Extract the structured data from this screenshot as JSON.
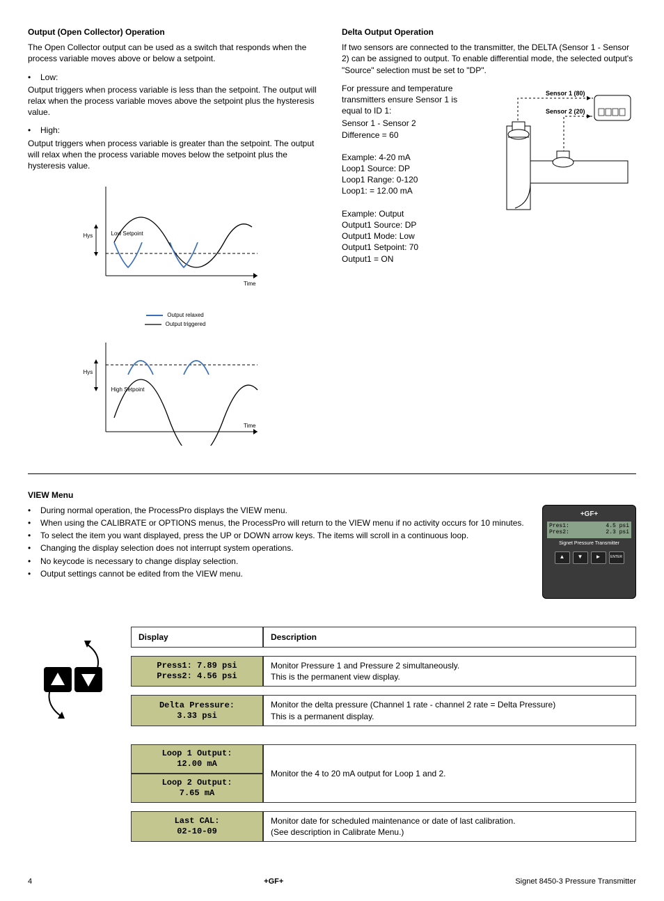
{
  "section_open_collector": {
    "heading": "Output (Open Collector) Operation",
    "intro": "The Open Collector output can be used as a switch that responds when the process variable moves above or below a setpoint.",
    "low": {
      "bullet": "Low:",
      "body": "Output triggers when process variable is less than the setpoint. The output will relax when the process variable moves above the setpoint plus the hysteresis value."
    },
    "high": {
      "bullet": "High:",
      "body": "Output triggers when process variable is greater than the setpoint. The output will relax when the process variable moves below the setpoint plus the hysteresis value."
    },
    "legend_relaxed": "Output relaxed",
    "legend_triggered": "Output triggered",
    "wave_low": {
      "hys_label": "Hys",
      "setpoint_label": "Low Setpoint",
      "time_label": "Time"
    },
    "wave_high": {
      "hys_label": "Hys",
      "setpoint_label": "High Setpoint",
      "time_label": "Time"
    }
  },
  "section_delta": {
    "heading": "Delta Output Operation",
    "p1": "If two sensors are connected to the transmitter, the DELTA (Sensor 1 - Sensor 2) can be assigned to output. To enable differential mode, the selected output's \"Source\" selection must be set to \"DP\".",
    "p2": "For pressure and temperature transmitters ensure Sensor 1 is equal to ID 1:",
    "lines": [
      "Sensor 1 - Sensor 2",
      "Difference = 60"
    ],
    "example1": [
      "Example: 4-20 mA",
      "Loop1 Source: DP",
      "Loop1 Range: 0-120",
      "Loop1: = 12.00 mA"
    ],
    "example2": [
      "Example: Output",
      "Output1 Source: DP",
      "Output1 Mode: Low",
      "Output1 Setpoint: 70",
      "Output1 = ON"
    ],
    "diagram": {
      "sensor1": "Sensor 1 (80)",
      "sensor2": "Sensor 2 (20)"
    }
  },
  "section_view": {
    "heading": "VIEW Menu",
    "bullets": [
      "During normal operation, the ProcessPro displays the VIEW menu.",
      "When using the CALIBRATE or OPTIONS menus, the ProcessPro will return to the VIEW menu if no activity occurs for 10 minutes.",
      "To select the item you want displayed, press the UP or DOWN arrow keys. The items will scroll in a continuous loop.",
      "Changing the display selection does not interrupt system operations.",
      "No keycode is necessary to change display selection.",
      "Output settings cannot be edited from the VIEW menu."
    ],
    "device": {
      "brand": "+GF+",
      "lcd_rows": [
        {
          "l": "Pres1:",
          "r": "4.5 psi"
        },
        {
          "l": "Pres2:",
          "r": "2.3 psi"
        }
      ],
      "caption": "Signet Pressure Transmitter",
      "buttons": [
        "▲",
        "▼",
        "►",
        "ENTER"
      ]
    },
    "table": {
      "header_display": "Display",
      "header_desc": "Description",
      "rows": [
        {
          "display": "Press1: 7.89 psi\nPress2: 4.56 psi",
          "desc": "Monitor Pressure 1 and Pressure 2 simultaneously.\nThis is the permanent view display."
        },
        {
          "display": "Delta Pressure:\n3.33 psi",
          "desc": "Monitor the delta pressure (Channel 1 rate - channel 2 rate = Delta Pressure)\nThis is a permanent display."
        }
      ],
      "loop_rows": {
        "d1": "Loop 1 Output:\n12.00 mA",
        "d2": "Loop 2 Output:\n7.65 mA",
        "desc": "Monitor the 4 to 20 mA output for Loop 1 and 2."
      },
      "cal_row": {
        "display": "Last CAL:\n02-10-09",
        "desc": "Monitor date for scheduled maintenance or date of last calibration.\n(See description in Calibrate Menu.)"
      }
    }
  },
  "footer": {
    "page": "4",
    "center": "+GF+",
    "right": "Signet 8450-3 Pressure Transmitter"
  },
  "style": {
    "olive": "#c3c68f",
    "device_bg": "#3a3a3a",
    "lcd": "#8aa18a"
  }
}
